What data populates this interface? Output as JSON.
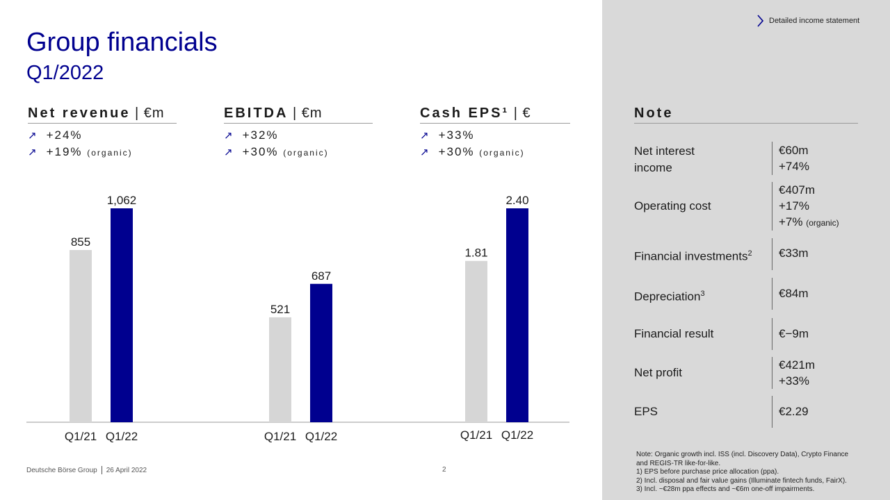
{
  "header": {
    "title": "Group financials",
    "subtitle": "Q1/2022",
    "link_label": "Detailed income statement"
  },
  "kpis": [
    {
      "name_bold": "Net revenue",
      "unit": " | €m",
      "growth": "+24%",
      "organic": "+19%",
      "organic_label": "(organic)"
    },
    {
      "name_bold": "EBITDA",
      "unit": " | €m",
      "growth": "+32%",
      "organic": "+30%",
      "organic_label": "(organic)"
    },
    {
      "name_bold": "Cash EPS¹",
      "unit": " | €",
      "growth": "+33%",
      "organic": "+30%",
      "organic_label": "(organic)"
    }
  ],
  "chart_data": [
    {
      "type": "bar",
      "title": "Net revenue | €m",
      "categories": [
        "Q1/21",
        "Q1/22"
      ],
      "values": [
        855,
        1062
      ],
      "labels": [
        "855",
        "1,062"
      ]
    },
    {
      "type": "bar",
      "title": "EBITDA | €m",
      "categories": [
        "Q1/21",
        "Q1/22"
      ],
      "values": [
        521,
        687
      ],
      "labels": [
        "521",
        "687"
      ]
    },
    {
      "type": "bar",
      "title": "Cash EPS¹ | €",
      "categories": [
        "Q1/21",
        "Q1/22"
      ],
      "values": [
        1.81,
        2.4
      ],
      "labels": [
        "1.81",
        "2.40"
      ]
    }
  ],
  "colors": {
    "prior_year": "#d6d6d6",
    "current_year": "#00008f",
    "accent": "#00008f",
    "panel": "#d9d9d9"
  },
  "note": {
    "title": "Note",
    "rows": [
      {
        "label": "Net interest income",
        "label_lines": [
          "Net interest",
          "income"
        ],
        "values": [
          "€60m",
          "+74%"
        ]
      },
      {
        "label": "Operating cost",
        "values": [
          "€407m",
          "+17%",
          "+7%"
        ],
        "value_suffix": "(organic)"
      },
      {
        "label": "Financial investments",
        "sup": "2",
        "values": [
          "€33m"
        ]
      },
      {
        "label": "Depreciation",
        "sup": "3",
        "values": [
          "€84m"
        ]
      },
      {
        "label": "Financial result",
        "values": [
          "€−9m"
        ]
      },
      {
        "label": "Net profit",
        "values": [
          "€421m",
          "+33%"
        ]
      },
      {
        "label": "EPS",
        "values": [
          "€2.29"
        ]
      }
    ]
  },
  "footnotes": [
    "Note: Organic growth incl. ISS (incl. Discovery Data), Crypto Finance",
    "and REGIS-TR like-for-like.",
    "1)   EPS before purchase price allocation (ppa).",
    "2)   Incl. disposal and fair value gains (Illuminate fintech funds, FairX).",
    "3)   Incl. ~€28m ppa effects and ~€6m one-off impairments."
  ],
  "footer": {
    "company": "Deutsche Börse Group",
    "date": "26 April 2022",
    "page": "2"
  }
}
